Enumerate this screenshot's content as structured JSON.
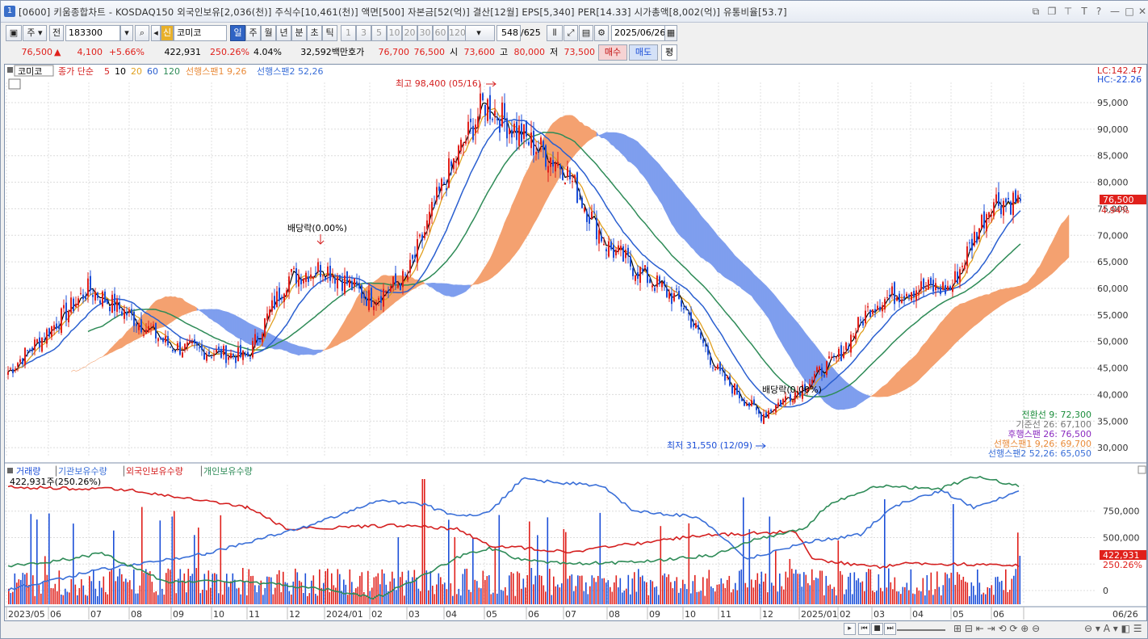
{
  "title": "[0600] 키움종합차트 - KOSDAQ150 외국인보유[2,036(천)] 주식수[10,461(천)] 액면[500] 자본금[52(억)] 결산[12월] EPS[5,340] PER[14.33] 시가총액[8,002(억)] 유통비율[53.7]",
  "app_number": "1",
  "toolbar": {
    "period_label": "주",
    "jeon_label": "전",
    "code": "183300",
    "shin_label": "신",
    "stock_name": "코미코",
    "periods": [
      "일",
      "주",
      "월",
      "년",
      "분",
      "초",
      "틱"
    ],
    "numbers": [
      "1",
      "3",
      "5",
      "10",
      "20",
      "30",
      "60",
      "120"
    ],
    "count": "548",
    "count_total": "/625",
    "date": "2025/06/26"
  },
  "quote": {
    "price": "76,500",
    "arrow": "▲",
    "change": "4,100",
    "change_pct": "+5.66%",
    "volume": "422,931",
    "vol_ratio": "250.26%",
    "turnover": "4.04%",
    "amount": "32,592백만",
    "hoga_label": "호가",
    "ask": "76,700",
    "bid": "76,500",
    "open_label": "시",
    "open": "73,600",
    "high_label": "고",
    "high": "80,000",
    "low_label": "저",
    "low": "73,500",
    "buy_label": "매수",
    "sell_label": "매도",
    "avg_label": "평"
  },
  "legend_top": {
    "stock": "코미코",
    "ma_label": "종가 단순",
    "ma_periods": [
      "5",
      "10",
      "20",
      "60",
      "120"
    ],
    "span1": "선행스팬1 9,26",
    "span2": "선행스팬2 52,26",
    "lc": "LC:142.47",
    "hc": "HC:-22.26"
  },
  "annotations": {
    "high": "최고 98,400 (05/16)",
    "low": "최저 31,550 (12/09)",
    "dividend1": "배당락(0.00%)",
    "dividend2": "배당락(0.00%)"
  },
  "price_label": "76,500",
  "price_pct": "4.94%",
  "ichimoku_values": [
    {
      "text": "전환선 9: 72,300",
      "color": "#1a8c3a"
    },
    {
      "text": "기준선 26: 67,100",
      "color": "#777777"
    },
    {
      "text": "후행스팬 26: 76,500",
      "color": "#8a2ac0"
    },
    {
      "text": "선행스팬1 9,26: 69,700",
      "color": "#e98b3a"
    },
    {
      "text": "선행스팬2 52,26: 65,050",
      "color": "#3a6fd8"
    }
  ],
  "legend_bottom": {
    "items": [
      {
        "text": "거래량",
        "color": "#1c4fd8"
      },
      {
        "text": "기관보유수량",
        "color": "#3a6fd8"
      },
      {
        "text": "외국인보유수량",
        "color": "#d41f1f"
      },
      {
        "text": "개인보유수량",
        "color": "#2e8b57"
      }
    ],
    "value_line": "422,931주(250.26%)"
  },
  "volume_labels": {
    "v1": "422,931",
    "v2": "250.26%"
  },
  "chart_data": [
    {
      "type": "candlestick",
      "title": "코미코",
      "y_ticks": [
        30000,
        35000,
        40000,
        45000,
        50000,
        55000,
        60000,
        65000,
        70000,
        75000,
        80000,
        85000,
        90000,
        95000
      ],
      "ylim": [
        28500,
        98800
      ],
      "x_tick_labels": [
        "2023/05",
        "06",
        "07",
        "08",
        "09",
        "10",
        "11",
        "12",
        "2024/01",
        "02",
        "03",
        "04",
        "05",
        "06",
        "07",
        "08",
        "09",
        "10",
        "11",
        "12",
        "2025/01",
        "02",
        "03",
        "04",
        "05",
        "06",
        "06/26"
      ],
      "close_approx": [
        [
          "2023/05",
          44000
        ],
        [
          "2023/06",
          52000
        ],
        [
          "2023/07",
          60000
        ],
        [
          "2023/08",
          55000
        ],
        [
          "2023/09",
          49000
        ],
        [
          "2023/10",
          48000
        ],
        [
          "2023/11",
          47000
        ],
        [
          "2023/12",
          62000
        ],
        [
          "2024/01",
          64000
        ],
        [
          "2024/02",
          58000
        ],
        [
          "2024/03",
          62000
        ],
        [
          "2024/04",
          80000
        ],
        [
          "2024/05",
          95000
        ],
        [
          "2024/06",
          88000
        ],
        [
          "2024/07",
          83000
        ],
        [
          "2024/08",
          68000
        ],
        [
          "2024/09",
          62000
        ],
        [
          "2024/10",
          57000
        ],
        [
          "2024/11",
          44000
        ],
        [
          "2024/12",
          36000
        ],
        [
          "2025/01",
          41000
        ],
        [
          "2025/02",
          47000
        ],
        [
          "2025/03",
          57000
        ],
        [
          "2025/04",
          60000
        ],
        [
          "2025/05",
          60000
        ],
        [
          "2025/06",
          76500
        ]
      ],
      "high": {
        "value": 98400,
        "date": "05/16"
      },
      "low": {
        "value": 31550,
        "date": "12/09"
      },
      "last": 76500
    },
    {
      "type": "bar+line",
      "title": "거래량 / 보유수량",
      "y_ticks": [
        0,
        250000,
        500000,
        750000
      ],
      "ylim": [
        -130000,
        1000000
      ],
      "series": [
        {
          "name": "거래량",
          "last": 422931
        },
        {
          "name": "기관보유수량"
        },
        {
          "name": "외국인보유수량"
        },
        {
          "name": "개인보유수량"
        }
      ]
    }
  ]
}
